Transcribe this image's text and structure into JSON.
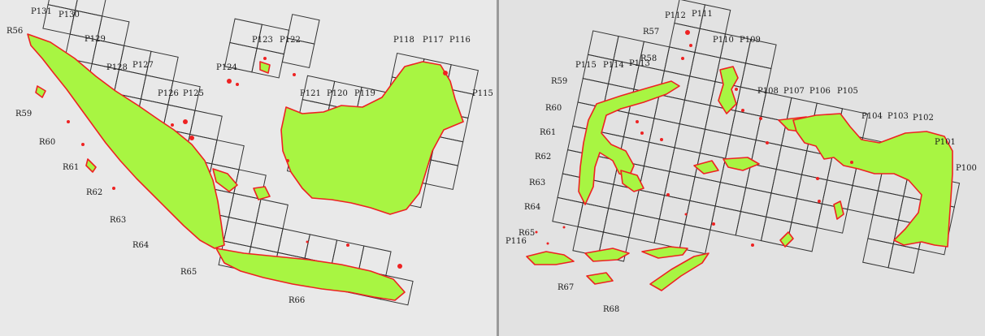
{
  "panels": [
    {
      "id": "left",
      "path_labels": [
        "P131",
        "P130",
        "P129",
        "P128",
        "P127",
        "P126",
        "P125",
        "P124",
        "P123",
        "P122",
        "P121",
        "P120",
        "P119",
        "P118",
        "P117",
        "P116",
        "P115"
      ],
      "row_labels": [
        "R56",
        "R59",
        "R60",
        "R61",
        "R62",
        "R63",
        "R64",
        "R65",
        "R66"
      ]
    },
    {
      "id": "right",
      "path_labels": [
        "P112",
        "P111",
        "P110",
        "P109",
        "P115",
        "P114",
        "P113",
        "P108",
        "P107",
        "P106",
        "P105",
        "P104",
        "P103",
        "P102",
        "P101",
        "P100",
        "P116"
      ],
      "row_labels": [
        "R57",
        "R58",
        "R59",
        "R60",
        "R61",
        "R62",
        "R63",
        "R64",
        "R65",
        "R67",
        "R68"
      ]
    }
  ],
  "legend": {
    "land_color": "#a8f542",
    "coast_color": "#ee2222",
    "grid_color": "#333333",
    "background": "#e9e9e9"
  }
}
